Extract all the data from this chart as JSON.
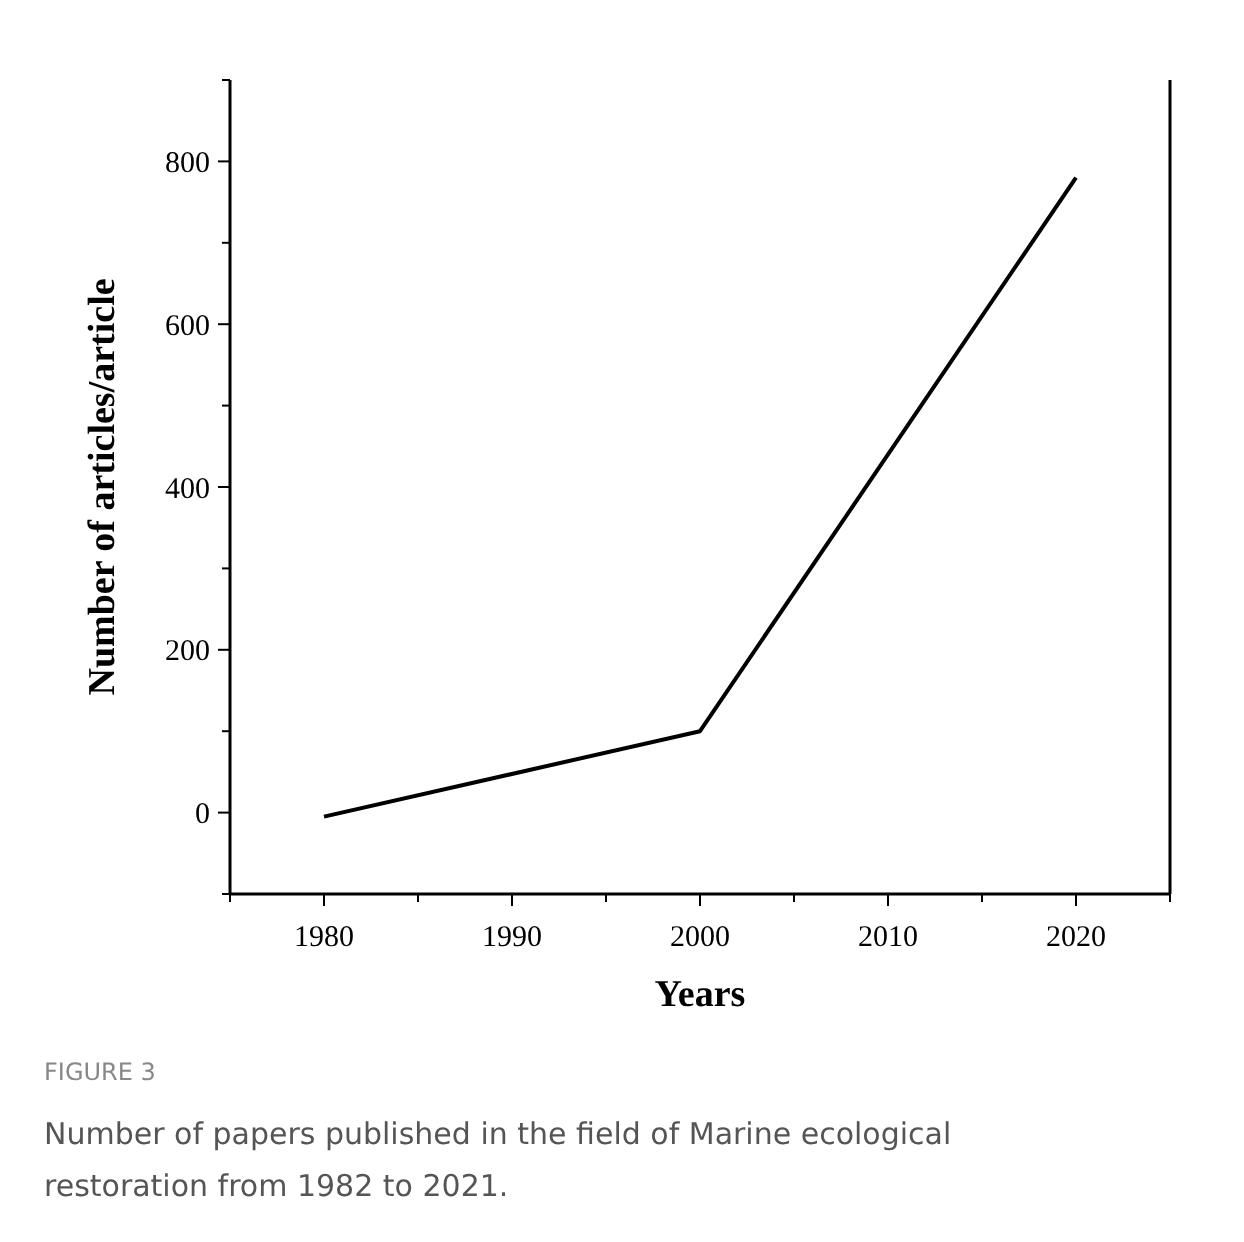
{
  "chart_data": {
    "type": "line",
    "xlabel": "Years",
    "ylabel": "Number of articles/article",
    "x": [
      1980,
      2000,
      2020
    ],
    "series": [
      {
        "color": "#000000",
        "values": [
          -5,
          100,
          780
        ]
      }
    ],
    "xlim": [
      1975,
      2025
    ],
    "xticks": [
      1980,
      1990,
      2000,
      2010,
      2020
    ],
    "ylim": [
      -100,
      900
    ],
    "yticks": [
      0,
      200,
      400,
      600,
      800
    ],
    "grid": false,
    "marker": "none",
    "line_style": "solid",
    "annotations": [
      "FIGURE 3",
      "Number of papers published in the field of Marine ecological restoration from 1982 to 2021."
    ]
  }
}
